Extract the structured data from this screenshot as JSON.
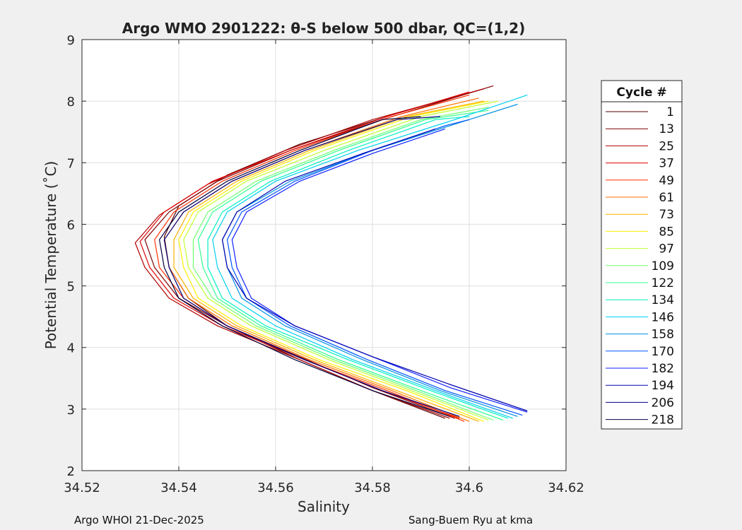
{
  "figure": {
    "title": "Argo WMO 2901222: θ-S below 500 dbar,  QC=(1,2)",
    "footer_left": "Argo WHOI 21-Dec-2025",
    "footer_right": "Sang-Buem Ryu at kma",
    "background": "#f0f0f0"
  },
  "chart_data": {
    "type": "line",
    "title": "Argo WMO 2901222: θ-S below 500 dbar,  QC=(1,2)",
    "xlabel": "Salinity",
    "ylabel": "Potential Temperature (˚C)",
    "xlim": [
      34.52,
      34.62
    ],
    "ylim": [
      2,
      9
    ],
    "xticks": [
      34.52,
      34.54,
      34.56,
      34.58,
      34.6,
      34.62
    ],
    "xtick_labels": [
      "34.52",
      "34.54",
      "34.56",
      "34.58",
      "34.6",
      "34.62"
    ],
    "yticks": [
      2,
      3,
      4,
      5,
      6,
      7,
      8,
      9
    ],
    "ytick_labels": [
      "2",
      "3",
      "4",
      "5",
      "6",
      "7",
      "8",
      "9"
    ],
    "grid": true,
    "legend_position": "right, outside",
    "legend_title": "Cycle #",
    "colormap": "jet",
    "series": [
      {
        "name": "1",
        "color": "#5a0000",
        "points": [
          [
            34.595,
            2.85
          ],
          [
            34.58,
            3.3
          ],
          [
            34.565,
            3.8
          ],
          [
            34.55,
            4.35
          ],
          [
            34.542,
            4.8
          ],
          [
            34.538,
            5.3
          ],
          [
            34.537,
            5.8
          ],
          [
            34.54,
            6.3
          ],
          [
            34.55,
            6.8
          ],
          [
            34.565,
            7.3
          ],
          [
            34.585,
            7.8
          ],
          [
            34.603,
            8.2
          ]
        ]
      },
      {
        "name": "13",
        "color": "#800000",
        "points": [
          [
            34.597,
            2.85
          ],
          [
            34.58,
            3.35
          ],
          [
            34.565,
            3.85
          ],
          [
            34.55,
            4.35
          ],
          [
            34.54,
            4.8
          ],
          [
            34.535,
            5.3
          ],
          [
            34.533,
            5.75
          ],
          [
            34.538,
            6.2
          ],
          [
            34.548,
            6.7
          ],
          [
            34.563,
            7.2
          ],
          [
            34.582,
            7.7
          ],
          [
            34.605,
            8.25
          ]
        ]
      },
      {
        "name": "25",
        "color": "#b00000",
        "points": [
          [
            34.596,
            2.85
          ],
          [
            34.58,
            3.3
          ],
          [
            34.565,
            3.8
          ],
          [
            34.548,
            4.35
          ],
          [
            34.538,
            4.8
          ],
          [
            34.533,
            5.3
          ],
          [
            34.531,
            5.7
          ],
          [
            34.536,
            6.15
          ],
          [
            34.546,
            6.65
          ],
          [
            34.562,
            7.2
          ],
          [
            34.58,
            7.7
          ],
          [
            34.603,
            8.2
          ]
        ]
      },
      {
        "name": "37",
        "color": "#e00000",
        "points": [
          [
            34.598,
            2.85
          ],
          [
            34.582,
            3.3
          ],
          [
            34.566,
            3.8
          ],
          [
            34.549,
            4.35
          ],
          [
            34.539,
            4.8
          ],
          [
            34.534,
            5.3
          ],
          [
            34.532,
            5.72
          ],
          [
            34.537,
            6.2
          ],
          [
            34.547,
            6.7
          ],
          [
            34.563,
            7.2
          ],
          [
            34.583,
            7.75
          ],
          [
            34.6,
            8.15
          ]
        ]
      },
      {
        "name": "49",
        "color": "#ff3000",
        "points": [
          [
            34.599,
            2.8
          ],
          [
            34.583,
            3.3
          ],
          [
            34.566,
            3.8
          ],
          [
            34.55,
            4.35
          ],
          [
            34.541,
            4.8
          ],
          [
            34.536,
            5.3
          ],
          [
            34.535,
            5.75
          ],
          [
            34.539,
            6.2
          ],
          [
            34.549,
            6.7
          ],
          [
            34.564,
            7.2
          ],
          [
            34.584,
            7.75
          ],
          [
            34.6,
            8.1
          ]
        ]
      },
      {
        "name": "61",
        "color": "#ff7000",
        "points": [
          [
            34.6,
            2.8
          ],
          [
            34.584,
            3.3
          ],
          [
            34.567,
            3.8
          ],
          [
            34.551,
            4.35
          ],
          [
            34.542,
            4.8
          ],
          [
            34.538,
            5.3
          ],
          [
            34.537,
            5.75
          ],
          [
            34.541,
            6.2
          ],
          [
            34.551,
            6.7
          ],
          [
            34.566,
            7.2
          ],
          [
            34.586,
            7.75
          ],
          [
            34.602,
            8.05
          ]
        ]
      },
      {
        "name": "73",
        "color": "#ffb000",
        "points": [
          [
            34.602,
            2.8
          ],
          [
            34.585,
            3.3
          ],
          [
            34.568,
            3.8
          ],
          [
            34.552,
            4.35
          ],
          [
            34.543,
            4.8
          ],
          [
            34.539,
            5.3
          ],
          [
            34.539,
            5.75
          ],
          [
            34.542,
            6.2
          ],
          [
            34.552,
            6.7
          ],
          [
            34.567,
            7.2
          ],
          [
            34.587,
            7.75
          ],
          [
            34.603,
            8.0
          ]
        ]
      },
      {
        "name": "85",
        "color": "#ffef00",
        "points": [
          [
            34.603,
            2.8
          ],
          [
            34.587,
            3.3
          ],
          [
            34.569,
            3.8
          ],
          [
            34.553,
            4.35
          ],
          [
            34.544,
            4.8
          ],
          [
            34.541,
            5.3
          ],
          [
            34.54,
            5.75
          ],
          [
            34.543,
            6.2
          ],
          [
            34.553,
            6.7
          ],
          [
            34.568,
            7.2
          ],
          [
            34.588,
            7.75
          ],
          [
            34.604,
            8.0
          ]
        ]
      },
      {
        "name": "97",
        "color": "#c0ff30",
        "points": [
          [
            34.604,
            2.82
          ],
          [
            34.588,
            3.3
          ],
          [
            34.571,
            3.8
          ],
          [
            34.555,
            4.35
          ],
          [
            34.546,
            4.8
          ],
          [
            34.542,
            5.3
          ],
          [
            34.541,
            5.75
          ],
          [
            34.544,
            6.2
          ],
          [
            34.554,
            6.7
          ],
          [
            34.57,
            7.2
          ],
          [
            34.59,
            7.75
          ],
          [
            34.606,
            8.0
          ]
        ]
      },
      {
        "name": "109",
        "color": "#70ff70",
        "points": [
          [
            34.605,
            2.82
          ],
          [
            34.589,
            3.3
          ],
          [
            34.572,
            3.8
          ],
          [
            34.556,
            4.35
          ],
          [
            34.547,
            4.8
          ],
          [
            34.543,
            5.3
          ],
          [
            34.543,
            5.75
          ],
          [
            34.546,
            6.2
          ],
          [
            34.556,
            6.7
          ],
          [
            34.572,
            7.2
          ],
          [
            34.59,
            7.7
          ],
          [
            34.604,
            7.9
          ]
        ]
      },
      {
        "name": "122",
        "color": "#30ff90",
        "points": [
          [
            34.607,
            2.82
          ],
          [
            34.59,
            3.3
          ],
          [
            34.573,
            3.8
          ],
          [
            34.557,
            4.35
          ],
          [
            34.548,
            4.8
          ],
          [
            34.545,
            5.3
          ],
          [
            34.544,
            5.75
          ],
          [
            34.547,
            6.2
          ],
          [
            34.557,
            6.7
          ],
          [
            34.573,
            7.2
          ],
          [
            34.591,
            7.7
          ],
          [
            34.604,
            7.85
          ]
        ]
      },
      {
        "name": "134",
        "color": "#00f0c0",
        "points": [
          [
            34.608,
            2.85
          ],
          [
            34.592,
            3.3
          ],
          [
            34.575,
            3.8
          ],
          [
            34.558,
            4.35
          ],
          [
            34.549,
            4.8
          ],
          [
            34.546,
            5.3
          ],
          [
            34.546,
            5.75
          ],
          [
            34.549,
            6.2
          ],
          [
            34.559,
            6.7
          ],
          [
            34.575,
            7.2
          ],
          [
            34.593,
            7.7
          ],
          [
            34.6,
            7.75
          ]
        ]
      },
      {
        "name": "146",
        "color": "#00d0f0",
        "points": [
          [
            34.609,
            2.85
          ],
          [
            34.593,
            3.3
          ],
          [
            34.576,
            3.8
          ],
          [
            34.56,
            4.35
          ],
          [
            34.551,
            4.8
          ],
          [
            34.548,
            5.3
          ],
          [
            34.547,
            5.75
          ],
          [
            34.55,
            6.2
          ],
          [
            34.56,
            6.7
          ],
          [
            34.577,
            7.2
          ],
          [
            34.597,
            7.7
          ],
          [
            34.612,
            8.1
          ]
        ]
      },
      {
        "name": "158",
        "color": "#0090e0",
        "points": [
          [
            34.61,
            2.88
          ],
          [
            34.594,
            3.3
          ],
          [
            34.578,
            3.8
          ],
          [
            34.562,
            4.35
          ],
          [
            34.553,
            4.8
          ],
          [
            34.55,
            5.3
          ],
          [
            34.549,
            5.75
          ],
          [
            34.552,
            6.2
          ],
          [
            34.563,
            6.7
          ],
          [
            34.58,
            7.2
          ],
          [
            34.598,
            7.65
          ],
          [
            34.61,
            7.95
          ]
        ]
      },
      {
        "name": "170",
        "color": "#0055ff",
        "points": [
          [
            34.611,
            2.9
          ],
          [
            34.595,
            3.3
          ],
          [
            34.579,
            3.8
          ],
          [
            34.563,
            4.35
          ],
          [
            34.554,
            4.8
          ],
          [
            34.551,
            5.3
          ],
          [
            34.55,
            5.75
          ],
          [
            34.553,
            6.2
          ],
          [
            34.564,
            6.7
          ],
          [
            34.58,
            7.2
          ],
          [
            34.595,
            7.6
          ],
          [
            34.6,
            7.7
          ]
        ]
      },
      {
        "name": "182",
        "color": "#1020ff",
        "points": [
          [
            34.612,
            2.95
          ],
          [
            34.596,
            3.35
          ],
          [
            34.58,
            3.85
          ],
          [
            34.564,
            4.35
          ],
          [
            34.555,
            4.8
          ],
          [
            34.552,
            5.3
          ],
          [
            34.551,
            5.75
          ],
          [
            34.554,
            6.2
          ],
          [
            34.565,
            6.7
          ],
          [
            34.58,
            7.15
          ],
          [
            34.595,
            7.55
          ]
        ]
      },
      {
        "name": "194",
        "color": "#0000b0",
        "points": [
          [
            34.612,
            2.97
          ],
          [
            34.596,
            3.4
          ],
          [
            34.58,
            3.85
          ],
          [
            34.564,
            4.35
          ],
          [
            34.554,
            4.8
          ],
          [
            34.55,
            5.3
          ],
          [
            34.549,
            5.75
          ],
          [
            34.552,
            6.2
          ],
          [
            34.562,
            6.7
          ],
          [
            34.578,
            7.15
          ],
          [
            34.593,
            7.55
          ]
        ]
      },
      {
        "name": "206",
        "color": "#000080",
        "points": [
          [
            34.598,
            2.88
          ],
          [
            34.582,
            3.3
          ],
          [
            34.566,
            3.8
          ],
          [
            34.55,
            4.35
          ],
          [
            34.541,
            4.8
          ],
          [
            34.538,
            5.3
          ],
          [
            34.537,
            5.75
          ],
          [
            34.541,
            6.2
          ],
          [
            34.551,
            6.7
          ],
          [
            34.566,
            7.2
          ],
          [
            34.585,
            7.7
          ],
          [
            34.594,
            7.75
          ]
        ]
      },
      {
        "name": "218",
        "color": "#000040",
        "points": [
          [
            34.596,
            2.88
          ],
          [
            34.58,
            3.3
          ],
          [
            34.564,
            3.8
          ],
          [
            34.549,
            4.35
          ],
          [
            34.54,
            4.8
          ],
          [
            34.537,
            5.3
          ],
          [
            34.536,
            5.75
          ],
          [
            34.54,
            6.2
          ],
          [
            34.55,
            6.7
          ],
          [
            34.565,
            7.2
          ],
          [
            34.582,
            7.7
          ],
          [
            34.59,
            7.75
          ]
        ]
      }
    ]
  }
}
